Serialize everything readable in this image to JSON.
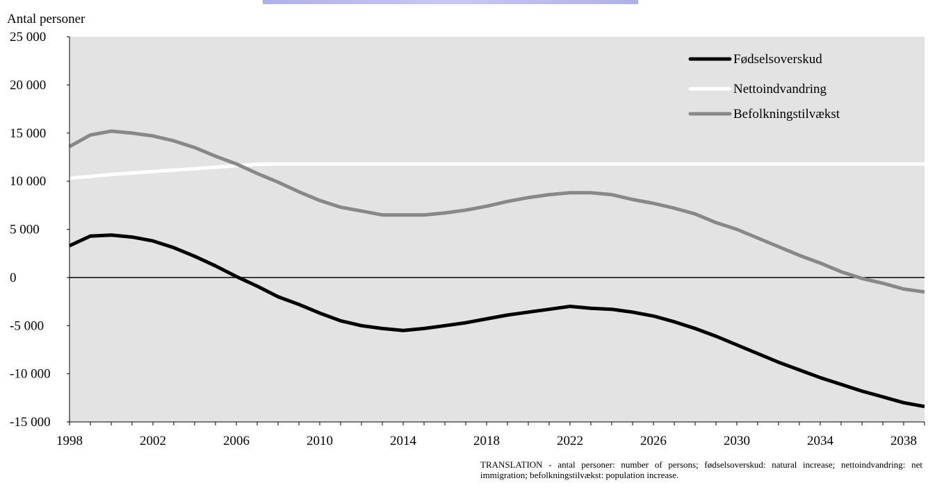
{
  "chart_data": {
    "type": "line",
    "title": "",
    "ylabel": "Antal personer",
    "xlabel": "",
    "ylim": [
      -15000,
      25000
    ],
    "xlim": [
      1998,
      2039
    ],
    "grid": false,
    "legend_position": "top-right",
    "y_ticks": [
      25000,
      20000,
      15000,
      10000,
      5000,
      0,
      -5000,
      -10000,
      -15000
    ],
    "y_tick_labels": [
      "25 000",
      "20 000",
      "15 000",
      "10 000",
      "5 000",
      "0",
      "-5 000",
      "-10 000",
      "-15 000"
    ],
    "x_tick_labels": [
      "1998",
      "2002",
      "2006",
      "2010",
      "2014",
      "2018",
      "2022",
      "2026",
      "2030",
      "2034",
      "2038"
    ],
    "x": [
      1998,
      1999,
      2000,
      2001,
      2002,
      2003,
      2004,
      2005,
      2006,
      2007,
      2008,
      2009,
      2010,
      2011,
      2012,
      2013,
      2014,
      2015,
      2016,
      2017,
      2018,
      2019,
      2020,
      2021,
      2022,
      2023,
      2024,
      2025,
      2026,
      2027,
      2028,
      2029,
      2030,
      2031,
      2032,
      2033,
      2034,
      2035,
      2036,
      2037,
      2038,
      2039
    ],
    "series": [
      {
        "name": "Fødselsoverskud",
        "color": "#000000",
        "values": [
          3300,
          4300,
          4400,
          4200,
          3800,
          3100,
          2200,
          1200,
          100,
          -900,
          -2000,
          -2800,
          -3700,
          -4500,
          -5000,
          -5300,
          -5500,
          -5300,
          -5000,
          -4700,
          -4300,
          -3900,
          -3600,
          -3300,
          -3000,
          -3200,
          -3300,
          -3600,
          -4000,
          -4600,
          -5300,
          -6100,
          -7000,
          -7900,
          -8800,
          -9600,
          -10400,
          -11100,
          -11800,
          -12400,
          -13000,
          -13400
        ]
      },
      {
        "name": "Nettoindvandring",
        "color": "#ffffff",
        "values": [
          10300,
          10500,
          10700,
          10850,
          11000,
          11150,
          11300,
          11450,
          11600,
          11750,
          11800,
          11800,
          11800,
          11800,
          11800,
          11800,
          11800,
          11800,
          11800,
          11800,
          11800,
          11800,
          11800,
          11800,
          11800,
          11800,
          11800,
          11800,
          11800,
          11800,
          11800,
          11800,
          11800,
          11800,
          11800,
          11800,
          11800,
          11800,
          11800,
          11800,
          11800,
          11800
        ]
      },
      {
        "name": "Befolkningstilvækst",
        "color": "#888888",
        "values": [
          13600,
          14800,
          15200,
          15000,
          14700,
          14200,
          13500,
          12600,
          11800,
          10800,
          9900,
          8900,
          8000,
          7300,
          6900,
          6500,
          6500,
          6500,
          6700,
          7000,
          7400,
          7900,
          8300,
          8600,
          8800,
          8800,
          8600,
          8100,
          7700,
          7200,
          6600,
          5700,
          5000,
          4100,
          3200,
          2300,
          1500,
          600,
          -100,
          -600,
          -1200,
          -1500
        ]
      }
    ]
  },
  "note": {
    "text": "TRANSLATION - antal personer: number of persons; fødselsoverskud: natural increase; nettoindvandring: net immigration; befolkningstilvækst: population increase."
  },
  "colors": {
    "plot_background": "#e3e3e3",
    "zero_line": "#000000",
    "axis": "#000000"
  }
}
